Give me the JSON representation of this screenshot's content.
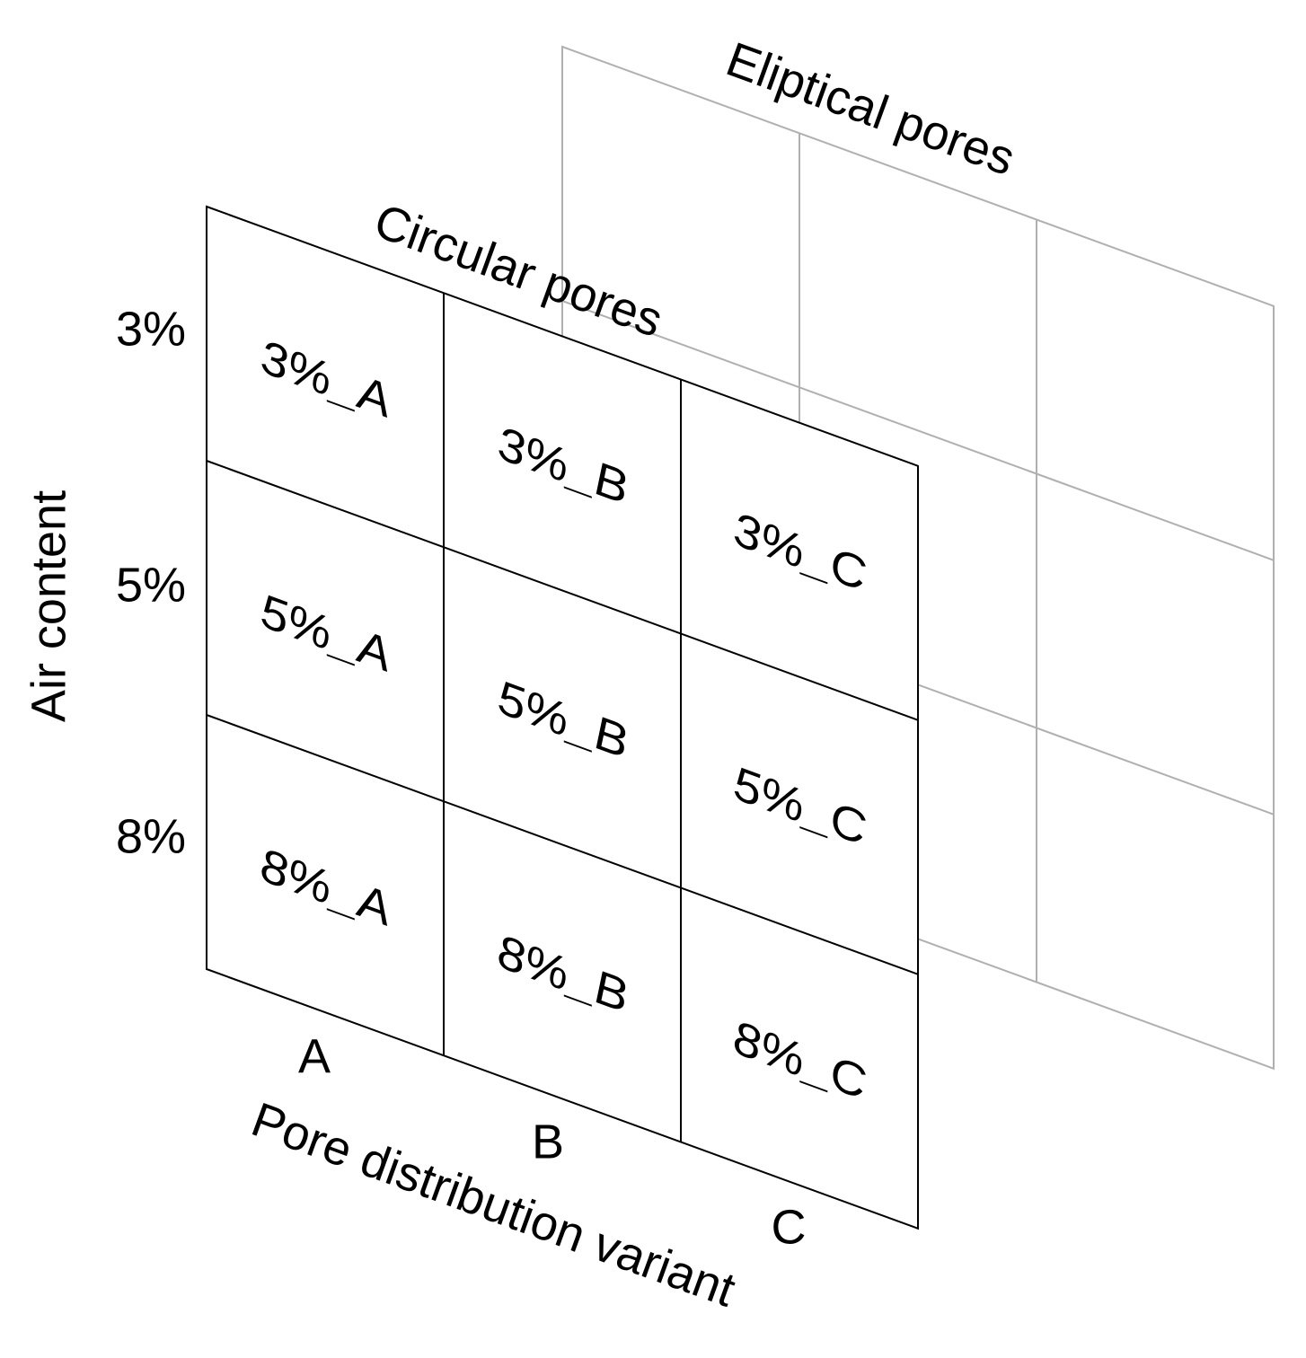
{
  "back_panel": {
    "title": "Eliptical pores"
  },
  "front_panel": {
    "title": "Circular pores",
    "cells": [
      [
        "3%_A",
        "3%_B",
        "3%_C"
      ],
      [
        "5%_A",
        "5%_B",
        "5%_C"
      ],
      [
        "8%_A",
        "8%_B",
        "8%_C"
      ]
    ]
  },
  "y_axis": {
    "title": "Air content",
    "labels": [
      "3%",
      "5%",
      "8%"
    ]
  },
  "x_axis": {
    "title": "Pore distribution variant",
    "labels": [
      "A",
      "B",
      "C"
    ]
  }
}
